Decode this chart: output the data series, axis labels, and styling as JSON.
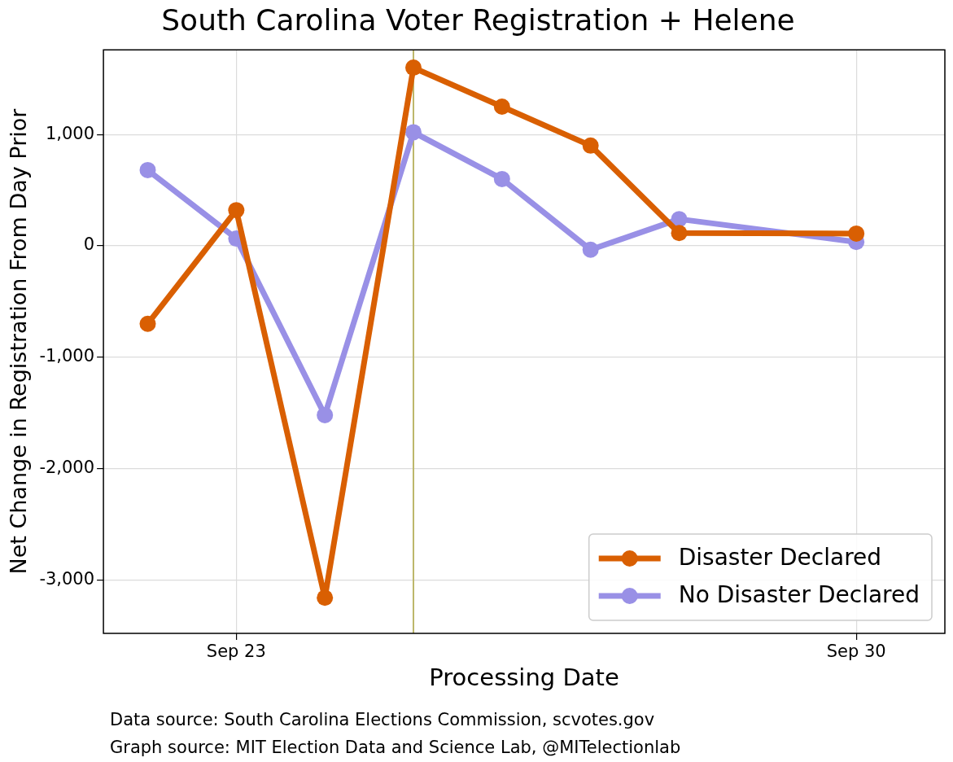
{
  "chart_data": {
    "type": "line",
    "title": "South Carolina Voter Registration + Helene",
    "xlabel": "Processing Date",
    "ylabel": "Net Change in Registration From Day Prior",
    "x": [
      "--09-22",
      "--09-23",
      "--09-24",
      "--09-25",
      "--09-26",
      "--09-27",
      "--09-28",
      "--09-30"
    ],
    "series": [
      {
        "name": "Disaster Declared",
        "color": "#d95f02",
        "values": [
          -700,
          320,
          -3160,
          1600,
          1250,
          900,
          115,
          110
        ]
      },
      {
        "name": "No Disaster Declared",
        "color": "#9990e6",
        "values": [
          680,
          65,
          -1520,
          1020,
          600,
          -35,
          240,
          35
        ]
      }
    ],
    "xlim": [
      "--09-21T12:00",
      "--10-01T00:00"
    ],
    "xticks": [
      {
        "value": "--09-23",
        "label": "Sep 23"
      },
      {
        "value": "--09-30",
        "label": "Sep 30"
      }
    ],
    "ylim": [
      -3480,
      1760
    ],
    "yticks": [
      {
        "value": -3000,
        "label": "-3,000"
      },
      {
        "value": -2000,
        "label": "-2,000"
      },
      {
        "value": -1000,
        "label": "-1,000"
      },
      0,
      {
        "value": 1000,
        "label": "1,000"
      }
    ],
    "ref_lines": [
      {
        "axis": "x",
        "value": "--09-25",
        "color": "#bdb76b"
      }
    ],
    "annotations": [
      "Data source: South Carolina Elections Commission, scvotes.gov",
      "Graph source: MIT Election Data and Science Lab, @MITelectionlab"
    ],
    "grid": true,
    "legend": "bottom right",
    "marker": "circle",
    "line_style": "solid"
  }
}
